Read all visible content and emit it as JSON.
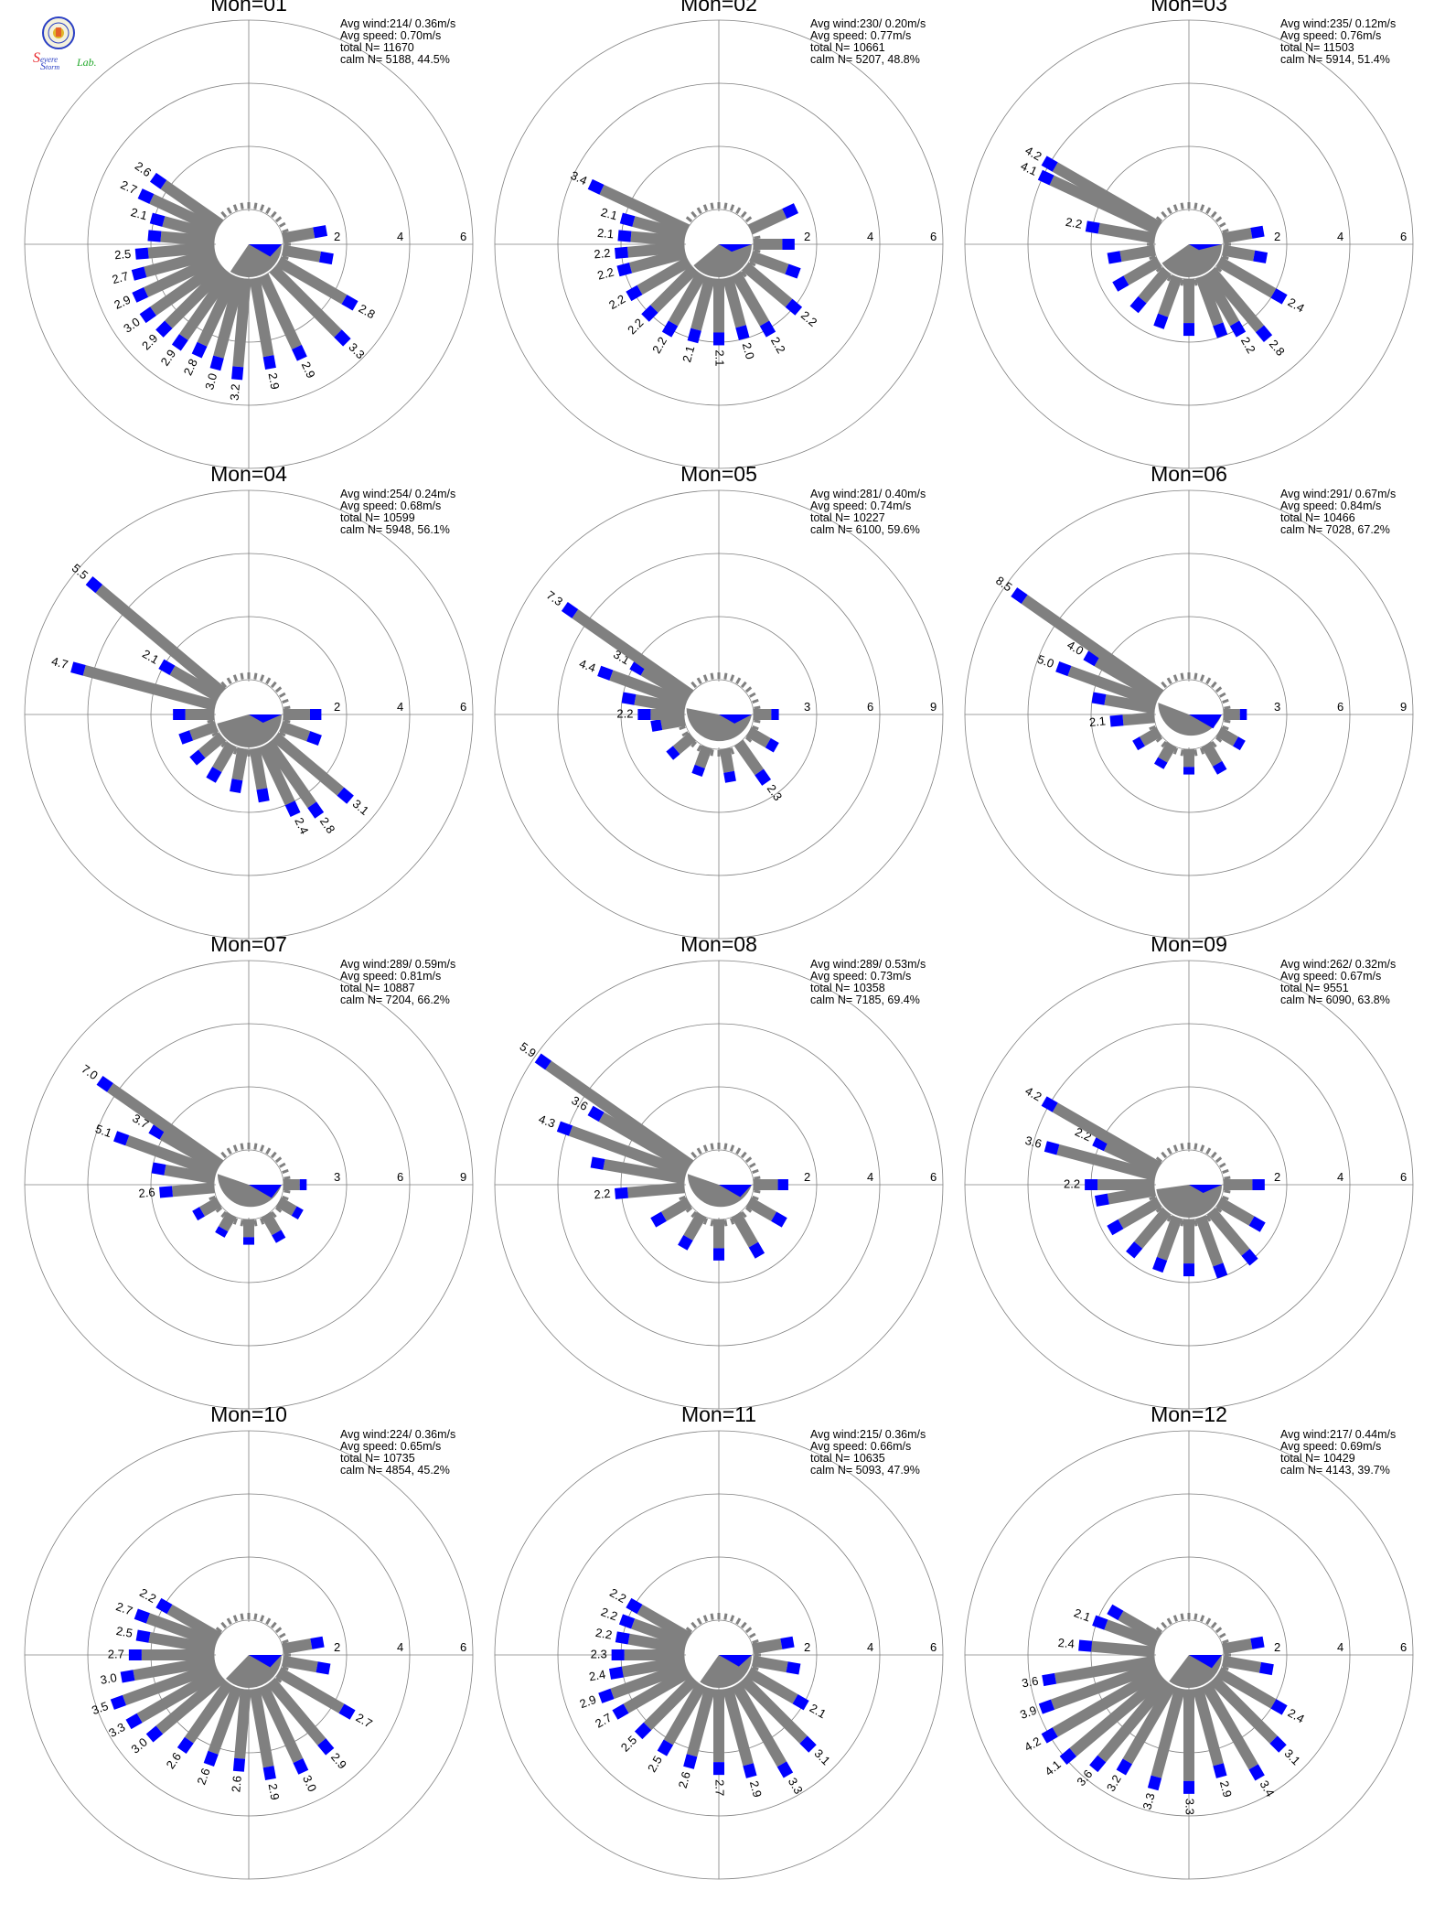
{
  "logo": {
    "text_s1": "S",
    "text_evere": "evere",
    "text_s2": "S",
    "text_torm": "torm",
    "text_lab": "Lab.",
    "colors": {
      "red": "#e8262a",
      "blue": "#2a3fc4",
      "green": "#22a82a",
      "gold": "#e0b62a"
    }
  },
  "colors": {
    "bar_gray": "#808080",
    "bar_blue": "#0000ff",
    "bar_green": "#22cc22",
    "mean_vector": "#0000ff",
    "calm_disk": "#808080",
    "ring": "#808080"
  },
  "chart_data": [
    {
      "type": "wind-rose",
      "title": "Mon=01",
      "stats": [
        "Avg wind:214/ 0.36m/s",
        "Avg speed: 0.70m/s",
        "total N=      11670",
        "calm N=   5188,  44.5%"
      ],
      "rings": [
        2,
        4,
        6
      ],
      "rmax": 6,
      "directions_deg": [
        80,
        100,
        120,
        135,
        155,
        170,
        185,
        195,
        205,
        215,
        225,
        235,
        245,
        255,
        265,
        275,
        285,
        295,
        305
      ],
      "values": [
        1.4,
        1.6,
        2.8,
        3.3,
        2.9,
        2.9,
        3.2,
        3.0,
        2.8,
        2.9,
        2.9,
        3.0,
        2.9,
        2.7,
        2.5,
        2.1,
        2.1,
        2.7,
        2.6
      ],
      "labels": [
        null,
        null,
        "2.8",
        "3.3",
        "2.9",
        "2.9",
        "3.2",
        "3.0",
        "2.8",
        "2.9",
        "2.9",
        "3.0",
        "2.9",
        "2.7",
        "2.5",
        null,
        "2.1",
        "2.7",
        "2.6"
      ],
      "mean_dir_deg": 214,
      "mean_len": 0.75
    },
    {
      "type": "wind-rose",
      "title": "Mon=02",
      "stats": [
        "Avg wind:230/ 0.20m/s",
        "Avg speed: 0.77m/s",
        "total N=      10661",
        "calm N=   5207,  48.8%"
      ],
      "rings": [
        2,
        4,
        6
      ],
      "rmax": 6,
      "directions_deg": [
        65,
        90,
        110,
        130,
        150,
        165,
        180,
        195,
        210,
        225,
        240,
        255,
        265,
        275,
        285,
        295
      ],
      "values": [
        1.6,
        1.3,
        1.6,
        2.2,
        2.2,
        2.0,
        2.1,
        2.1,
        2.2,
        2.2,
        2.2,
        2.2,
        2.2,
        2.1,
        2.1,
        3.4
      ],
      "labels": [
        null,
        null,
        null,
        "2.2",
        "2.2",
        "2.0",
        "2.1",
        "2.1",
        "2.2",
        "2.2",
        "2.2",
        "2.2",
        "2.2",
        "2.1",
        "2.1",
        "3.4"
      ],
      "mean_dir_deg": 230,
      "mean_len": 0.45
    },
    {
      "type": "wind-rose",
      "title": "Mon=03",
      "stats": [
        "Avg wind:235/ 0.12m/s",
        "Avg speed: 0.76m/s",
        "total N=      11503",
        "calm N=   5914,  51.4%"
      ],
      "rings": [
        2,
        4,
        6
      ],
      "rmax": 6,
      "directions_deg": [
        80,
        100,
        120,
        140,
        150,
        160,
        180,
        200,
        220,
        240,
        260,
        280,
        295,
        300
      ],
      "values": [
        1.3,
        1.4,
        2.4,
        2.8,
        2.2,
        2.0,
        1.8,
        1.7,
        1.6,
        1.6,
        1.5,
        2.2,
        4.1,
        4.2
      ],
      "labels": [
        null,
        null,
        "2.4",
        "2.8",
        "2.2",
        null,
        null,
        null,
        null,
        null,
        null,
        "2.2",
        "4.1",
        "4.2"
      ],
      "mean_dir_deg": 235,
      "mean_len": 0.35
    },
    {
      "type": "wind-rose",
      "title": "Mon=04",
      "stats": [
        "Avg wind:254/ 0.24m/s",
        "Avg speed: 0.68m/s",
        "total N=      10599",
        "calm N=   5948,  56.1%"
      ],
      "rings": [
        2,
        4,
        6
      ],
      "rmax": 6,
      "directions_deg": [
        90,
        110,
        130,
        145,
        155,
        170,
        190,
        210,
        230,
        250,
        270,
        285,
        300,
        310
      ],
      "values": [
        1.2,
        1.3,
        3.1,
        2.8,
        2.4,
        1.7,
        1.4,
        1.3,
        1.2,
        1.2,
        1.3,
        4.7,
        2.1,
        5.5
      ],
      "labels": [
        null,
        null,
        "3.1",
        "2.8",
        "2.4",
        null,
        null,
        null,
        null,
        null,
        null,
        "4.7",
        "2.1",
        "5.5"
      ],
      "mean_dir_deg": 254,
      "mean_len": 0.5
    },
    {
      "type": "wind-rose",
      "title": "Mon=05",
      "stats": [
        "Avg wind:281/ 0.40m/s",
        "Avg speed: 0.74m/s",
        "total N=      10227",
        "calm N=   6100,  59.6%"
      ],
      "rings": [
        3,
        6,
        9
      ],
      "rmax": 9,
      "directions_deg": [
        90,
        120,
        145,
        170,
        200,
        230,
        260,
        270,
        280,
        290,
        300,
        305
      ],
      "values": [
        1.2,
        1.5,
        2.3,
        1.6,
        1.4,
        1.4,
        1.6,
        2.2,
        3.0,
        4.4,
        3.1,
        7.3
      ],
      "labels": [
        null,
        null,
        "2.3",
        null,
        null,
        null,
        null,
        "2.2",
        null,
        "4.4",
        "3.1",
        "7.3"
      ],
      "mean_dir_deg": 281,
      "mean_len": 0.55
    },
    {
      "type": "wind-rose",
      "title": "Mon=06",
      "stats": [
        "Avg wind:291/ 0.67m/s",
        "Avg speed: 0.84m/s",
        "total N=      10466",
        "calm N=   7028,  67.2%"
      ],
      "rings": [
        3,
        6,
        9
      ],
      "rmax": 9,
      "directions_deg": [
        90,
        120,
        150,
        180,
        210,
        240,
        265,
        280,
        290,
        300,
        305
      ],
      "values": [
        1.1,
        1.3,
        1.5,
        1.2,
        1.2,
        1.3,
        2.1,
        3.0,
        5.0,
        4.0,
        8.5
      ],
      "labels": [
        null,
        null,
        null,
        null,
        null,
        null,
        "2.1",
        null,
        "5.0",
        "4.0",
        "8.5"
      ],
      "mean_dir_deg": 291,
      "mean_len": 0.85
    },
    {
      "type": "wind-rose",
      "title": "Mon=07",
      "stats": [
        "Avg wind:289/ 0.59m/s",
        "Avg speed: 0.81m/s",
        "total N=      10887",
        "calm N=   7204,  66.2%"
      ],
      "rings": [
        3,
        6,
        9
      ],
      "rmax": 9,
      "directions_deg": [
        90,
        120,
        150,
        180,
        210,
        240,
        265,
        280,
        290,
        300,
        305
      ],
      "values": [
        1.1,
        1.2,
        1.4,
        1.2,
        1.1,
        1.3,
        2.6,
        3.0,
        5.1,
        3.7,
        7.0
      ],
      "labels": [
        null,
        null,
        null,
        null,
        null,
        null,
        "2.6",
        null,
        "5.1",
        "3.7",
        "7.0"
      ],
      "mean_dir_deg": 289,
      "mean_len": 0.8
    },
    {
      "type": "wind-rose",
      "title": "Mon=08",
      "stats": [
        "Avg wind:289/ 0.53m/s",
        "Avg speed: 0.73m/s",
        "total N=      10358",
        "calm N=   7185,  69.4%"
      ],
      "rings": [
        2,
        4,
        6
      ],
      "rmax": 6,
      "directions_deg": [
        90,
        120,
        150,
        180,
        210,
        240,
        265,
        280,
        290,
        300,
        305
      ],
      "values": [
        1.1,
        1.3,
        1.5,
        1.3,
        1.2,
        1.3,
        2.2,
        3.0,
        4.3,
        3.6,
        5.9
      ],
      "labels": [
        null,
        null,
        null,
        null,
        null,
        null,
        "2.2",
        null,
        "4.3",
        "3.6",
        "5.9"
      ],
      "mean_dir_deg": 289,
      "mean_len": 0.75
    },
    {
      "type": "wind-rose",
      "title": "Mon=09",
      "stats": [
        "Avg wind:262/ 0.32m/s",
        "Avg speed: 0.67m/s",
        "total N=      9551",
        "calm N=   6090,  63.8%"
      ],
      "rings": [
        2,
        4,
        6
      ],
      "rmax": 6,
      "directions_deg": [
        90,
        120,
        140,
        160,
        180,
        200,
        220,
        240,
        260,
        270,
        285,
        295,
        300
      ],
      "values": [
        1.3,
        1.6,
        2.1,
        2.0,
        1.8,
        1.8,
        1.8,
        1.8,
        1.9,
        2.2,
        3.6,
        2.2,
        4.2
      ],
      "labels": [
        null,
        null,
        null,
        null,
        null,
        null,
        null,
        null,
        null,
        "2.2",
        "3.6",
        "2.2",
        "4.2"
      ],
      "mean_dir_deg": 262,
      "mean_len": 0.5
    },
    {
      "type": "wind-rose",
      "title": "Mon=10",
      "stats": [
        "Avg wind:224/ 0.36m/s",
        "Avg speed: 0.65m/s",
        "total N=      10735",
        "calm N=   4854,  45.2%"
      ],
      "rings": [
        2,
        4,
        6
      ],
      "rmax": 6,
      "directions_deg": [
        80,
        100,
        120,
        140,
        155,
        170,
        185,
        200,
        215,
        230,
        240,
        250,
        260,
        270,
        280,
        290,
        300
      ],
      "values": [
        1.3,
        1.5,
        2.7,
        2.9,
        3.0,
        2.9,
        2.6,
        2.6,
        2.6,
        3.0,
        3.3,
        3.5,
        3.0,
        2.7,
        2.5,
        2.7,
        2.2
      ],
      "labels": [
        null,
        null,
        "2.7",
        "2.9",
        "3.0",
        "2.9",
        "2.6",
        "2.6",
        "2.6",
        "3.0",
        "3.3",
        "3.5",
        "3.0",
        "2.7",
        "2.5",
        "2.7",
        "2.2"
      ],
      "mean_dir_deg": 224,
      "mean_len": 0.75
    },
    {
      "type": "wind-rose",
      "title": "Mon=11",
      "stats": [
        "Avg wind:215/ 0.36m/s",
        "Avg speed: 0.66m/s",
        "total N=      10635",
        "calm N=   5093,  47.9%"
      ],
      "rings": [
        2,
        4,
        6
      ],
      "rmax": 6,
      "directions_deg": [
        80,
        100,
        120,
        135,
        150,
        165,
        180,
        195,
        210,
        225,
        240,
        250,
        260,
        270,
        280,
        290,
        300
      ],
      "values": [
        1.3,
        1.5,
        2.1,
        3.1,
        3.3,
        2.9,
        2.7,
        2.6,
        2.5,
        2.5,
        2.7,
        2.9,
        2.4,
        2.3,
        2.2,
        2.2,
        2.2
      ],
      "labels": [
        null,
        null,
        "2.1",
        "3.1",
        "3.3",
        "2.9",
        "2.7",
        "2.6",
        "2.5",
        "2.5",
        "2.7",
        "2.9",
        "2.4",
        "2.3",
        "2.2",
        "2.2",
        "2.2"
      ],
      "mean_dir_deg": 215,
      "mean_len": 0.7
    },
    {
      "type": "wind-rose",
      "title": "Mon=12",
      "stats": [
        "Avg wind:217/ 0.44m/s",
        "Avg speed: 0.69m/s",
        "total N=      10429",
        "calm N=   4143,  39.7%"
      ],
      "rings": [
        2,
        4,
        6
      ],
      "rmax": 6,
      "directions_deg": [
        80,
        100,
        120,
        135,
        150,
        165,
        180,
        195,
        210,
        220,
        230,
        240,
        250,
        260,
        275,
        290,
        300
      ],
      "values": [
        1.3,
        1.6,
        2.4,
        3.1,
        3.4,
        2.9,
        3.3,
        3.3,
        3.2,
        3.6,
        4.1,
        4.2,
        3.9,
        3.6,
        2.4,
        2.1,
        1.8
      ],
      "labels": [
        null,
        null,
        "2.4",
        "3.1",
        "3.4",
        "2.9",
        "3.3",
        "3.3",
        "3.2",
        "3.6",
        "4.1",
        "4.2",
        "3.9",
        "3.6",
        "2.4",
        "2.1",
        null
      ],
      "mean_dir_deg": 217,
      "mean_len": 0.8
    }
  ]
}
